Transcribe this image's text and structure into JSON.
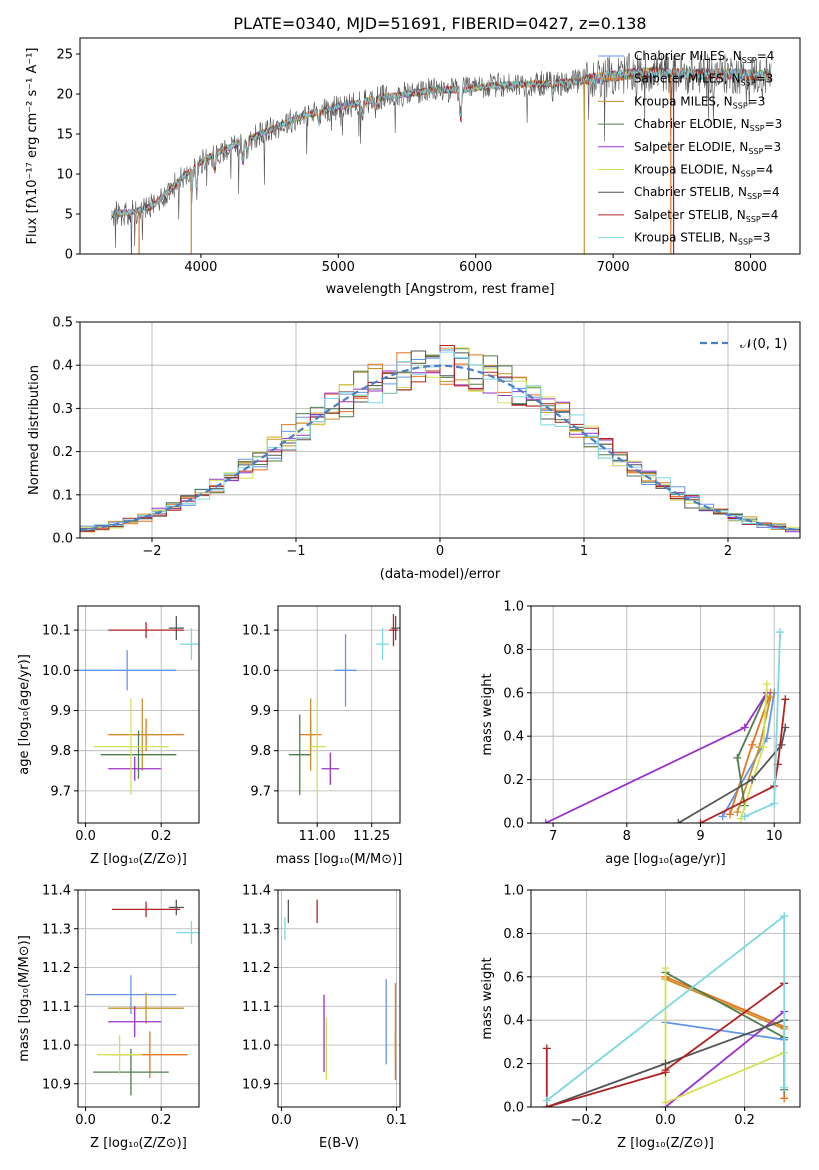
{
  "figure": {
    "title": "PLATE=0340, MJD=51691, FIBERID=0427, z=0.138"
  },
  "colors": [
    "#6495ed",
    "#e8741e",
    "#c8912a",
    "#4f7d4f",
    "#9932cc",
    "#d4e157",
    "#555555",
    "#b22222",
    "#7dd8e0"
  ],
  "chart_data": [
    {
      "id": "spectrum",
      "type": "line",
      "xlabel": "wavelength [Angstrom, rest frame]",
      "ylabel": "Flux [fλ10⁻¹⁷ erg cm⁻² s⁻¹ A⁻¹]",
      "xlim": [
        3120,
        8360
      ],
      "ylim": [
        0,
        27
      ],
      "xticks": [
        4000,
        5000,
        6000,
        7000,
        8000
      ],
      "yticks": [
        0,
        5,
        10,
        15,
        20,
        25
      ],
      "legend": "upper right",
      "series": [
        {
          "name": "Chabrier MILES, N",
          "sub": "SSP",
          "suffix": "=4",
          "color": "#6495ed"
        },
        {
          "name": "Salpeter MILES, N",
          "sub": "SSP",
          "suffix": "=3",
          "color": "#e8741e"
        },
        {
          "name": "Kroupa MILES, N",
          "sub": "SSP",
          "suffix": "=3",
          "color": "#c8912a"
        },
        {
          "name": "Chabrier ELODIE, N",
          "sub": "SSP",
          "suffix": "=3",
          "color": "#4f7d4f"
        },
        {
          "name": "Salpeter ELODIE, N",
          "sub": "SSP",
          "suffix": "=3",
          "color": "#9932cc"
        },
        {
          "name": "Kroupa ELODIE, N",
          "sub": "SSP",
          "suffix": "=4",
          "color": "#d4e157"
        },
        {
          "name": "Chabrier STELIB, N",
          "sub": "SSP",
          "suffix": "=4",
          "color": "#555555"
        },
        {
          "name": "Salpeter STELIB, N",
          "sub": "SSP",
          "suffix": "=4",
          "color": "#b22222"
        },
        {
          "name": "Kroupa STELIB, N",
          "sub": "SSP",
          "suffix": "=3",
          "color": "#7dd8e0"
        }
      ],
      "continuum": {
        "x": [
          3350,
          3500,
          3650,
          3800,
          3950,
          4100,
          4300,
          4500,
          4700,
          4900,
          5100,
          5300,
          5500,
          5700,
          5900,
          6100,
          6300,
          6500,
          6700,
          6900,
          7100,
          7300,
          7500,
          7700,
          7900,
          8100
        ],
        "y": [
          5,
          5.2,
          6,
          8.5,
          11,
          12.5,
          14,
          15.5,
          17,
          18,
          18.7,
          19.5,
          20,
          20.5,
          20.5,
          21,
          21.2,
          21.3,
          21.5,
          22,
          22.5,
          22.7,
          22.5,
          22.5,
          22.5,
          22.3
        ]
      }
    },
    {
      "id": "residuals",
      "type": "line",
      "xlabel": "(data-model)/error",
      "ylabel": "Normed distribution",
      "xlim": [
        -2.5,
        2.5
      ],
      "ylim": [
        0,
        0.5
      ],
      "xticks": [
        -2,
        -1,
        0,
        1,
        2
      ],
      "xticklabels": [
        "−2",
        "−1",
        "0",
        "1",
        "2"
      ],
      "yticks": [
        0,
        0.1,
        0.2,
        0.3,
        0.4,
        0.5
      ],
      "yticklabels": [
        "0.0",
        "0.1",
        "0.2",
        "0.3",
        "0.4",
        "0.5"
      ],
      "reference": {
        "name": "𝒩(0, 1)",
        "mu": 0,
        "sigma": 1,
        "color": "#4a7fc8"
      },
      "legend": "upper right"
    },
    {
      "id": "age-z",
      "type": "scatter",
      "xlabel": "Z [log₁₀(Z/Z⊙)]",
      "ylabel": "age  [log₁₀(age/yr)]",
      "xlim": [
        -0.02,
        0.3
      ],
      "ylim": [
        9.62,
        10.16
      ],
      "xticks": [
        0.0,
        0.2
      ],
      "xticklabels": [
        "0.0",
        "0.2"
      ],
      "yticks": [
        9.7,
        9.8,
        9.9,
        10.0,
        10.1
      ],
      "yticklabels": [
        "9.7",
        "9.8",
        "9.9",
        "10.0",
        "10.1"
      ],
      "points": [
        {
          "x": 0.11,
          "y": 10.0,
          "xe": 0.13,
          "ye": 0.05,
          "c": 0
        },
        {
          "x": 0.16,
          "y": 9.84,
          "xe": 0.1,
          "ye": 0.04,
          "c": 1
        },
        {
          "x": 0.15,
          "y": 9.84,
          "xe": 0.08,
          "ye": 0.09,
          "c": 2
        },
        {
          "x": 0.14,
          "y": 9.79,
          "xe": 0.1,
          "ye": 0.06,
          "c": 3
        },
        {
          "x": 0.13,
          "y": 9.755,
          "xe": 0.07,
          "ye": 0.03,
          "c": 4
        },
        {
          "x": 0.12,
          "y": 9.81,
          "xe": 0.1,
          "ye": 0.12,
          "c": 5
        },
        {
          "x": 0.24,
          "y": 10.105,
          "xe": 0.02,
          "ye": 0.03,
          "c": 6
        },
        {
          "x": 0.16,
          "y": 10.1,
          "xe": 0.1,
          "ye": 0.02,
          "c": 7
        },
        {
          "x": 0.28,
          "y": 10.065,
          "xe": 0.03,
          "ye": 0.04,
          "c": 8
        }
      ]
    },
    {
      "id": "age-mass",
      "type": "scatter",
      "xlabel": "mass [log₁₀(M/M⊙)]",
      "ylabel": "",
      "xlim": [
        10.82,
        11.38
      ],
      "ylim": [
        9.62,
        10.16
      ],
      "xticks": [
        11.0,
        11.25
      ],
      "xticklabels": [
        "11.00",
        "11.25"
      ],
      "yticks": [
        9.7,
        9.8,
        9.9,
        10.0,
        10.1
      ],
      "yticklabels": [
        "9.7",
        "9.8",
        "9.9",
        "10.0",
        "10.1"
      ],
      "points": [
        {
          "x": 11.13,
          "y": 10.0,
          "xe": 0.05,
          "ye": 0.09,
          "c": 0
        },
        {
          "x": 10.97,
          "y": 9.84,
          "xe": 0.05,
          "ye": 0.04,
          "c": 1
        },
        {
          "x": 10.97,
          "y": 9.84,
          "xe": 0.02,
          "ye": 0.09,
          "c": 2
        },
        {
          "x": 10.92,
          "y": 9.79,
          "xe": 0.05,
          "ye": 0.1,
          "c": 3
        },
        {
          "x": 11.06,
          "y": 9.755,
          "xe": 0.04,
          "ye": 0.04,
          "c": 4
        },
        {
          "x": 11.0,
          "y": 9.81,
          "xe": 0.04,
          "ye": 0.12,
          "c": 5
        },
        {
          "x": 11.36,
          "y": 10.105,
          "xe": 0.02,
          "ye": 0.03,
          "c": 6
        },
        {
          "x": 11.35,
          "y": 10.1,
          "xe": 0.02,
          "ye": 0.04,
          "c": 7
        },
        {
          "x": 11.3,
          "y": 10.065,
          "xe": 0.03,
          "ye": 0.04,
          "c": 8
        }
      ]
    },
    {
      "id": "weight-age",
      "type": "line",
      "xlabel": "age  [log₁₀(age/yr)]",
      "ylabel": "mass weight",
      "xlim": [
        6.7,
        10.35
      ],
      "ylim": [
        0,
        1
      ],
      "xticks": [
        7,
        8,
        9,
        10
      ],
      "xticklabels": [
        "7",
        "8",
        "9",
        "10"
      ],
      "yticks": [
        0,
        0.2,
        0.4,
        0.6,
        0.8,
        1.0
      ],
      "yticklabels": [
        "0.0",
        "0.2",
        "0.4",
        "0.6",
        "0.8",
        "1.0"
      ],
      "series": [
        {
          "c": 0,
          "x": [
            9.3,
            9.9,
            10.0
          ],
          "y": [
            0.03,
            0.39,
            0.6
          ]
        },
        {
          "c": 1,
          "x": [
            9.4,
            9.7,
            9.95
          ],
          "y": [
            0.04,
            0.36,
            0.6
          ]
        },
        {
          "c": 2,
          "x": [
            9.5,
            9.8,
            9.95
          ],
          "y": [
            0.05,
            0.35,
            0.58
          ]
        },
        {
          "c": 3,
          "x": [
            9.6,
            9.5,
            9.9
          ],
          "y": [
            0.08,
            0.3,
            0.6
          ]
        },
        {
          "c": 4,
          "x": [
            6.9,
            9.6,
            9.9
          ],
          "y": [
            0.0,
            0.44,
            0.6
          ]
        },
        {
          "c": 5,
          "x": [
            9.55,
            9.85,
            9.9
          ],
          "y": [
            0.02,
            0.35,
            0.64
          ]
        },
        {
          "c": 6,
          "x": [
            8.7,
            9.7,
            10.1,
            10.15
          ],
          "y": [
            0.0,
            0.2,
            0.36,
            0.44
          ]
        },
        {
          "c": 7,
          "x": [
            9.0,
            10.0,
            10.05,
            10.15
          ],
          "y": [
            0.0,
            0.17,
            0.27,
            0.57
          ]
        },
        {
          "c": 8,
          "x": [
            9.6,
            10.0,
            10.08
          ],
          "y": [
            0.03,
            0.09,
            0.88
          ]
        }
      ]
    },
    {
      "id": "mass-z",
      "type": "scatter",
      "xlabel": "Z [log₁₀(Z/Z⊙)]",
      "ylabel": "mass [log₁₀(M/M⊙)]",
      "xlim": [
        -0.02,
        0.3
      ],
      "ylim": [
        10.84,
        11.4
      ],
      "xticks": [
        0.0,
        0.2
      ],
      "xticklabels": [
        "0.0",
        "0.2"
      ],
      "yticks": [
        10.9,
        11.0,
        11.1,
        11.2,
        11.3,
        11.4
      ],
      "yticklabels": [
        "10.9",
        "11.0",
        "11.1",
        "11.2",
        "11.3",
        "11.4"
      ],
      "points": [
        {
          "x": 0.12,
          "y": 11.13,
          "xe": 0.12,
          "ye": 0.05,
          "c": 0
        },
        {
          "x": 0.17,
          "y": 10.975,
          "xe": 0.1,
          "ye": 0.06,
          "c": 1
        },
        {
          "x": 0.16,
          "y": 11.095,
          "xe": 0.1,
          "ye": 0.04,
          "c": 2
        },
        {
          "x": 0.12,
          "y": 10.93,
          "xe": 0.1,
          "ye": 0.06,
          "c": 3
        },
        {
          "x": 0.13,
          "y": 11.06,
          "xe": 0.07,
          "ye": 0.04,
          "c": 4
        },
        {
          "x": 0.09,
          "y": 10.975,
          "xe": 0.06,
          "ye": 0.05,
          "c": 5
        },
        {
          "x": 0.24,
          "y": 11.355,
          "xe": 0.02,
          "ye": 0.02,
          "c": 6
        },
        {
          "x": 0.16,
          "y": 11.35,
          "xe": 0.09,
          "ye": 0.02,
          "c": 7
        },
        {
          "x": 0.28,
          "y": 11.29,
          "xe": 0.04,
          "ye": 0.03,
          "c": 8
        }
      ]
    },
    {
      "id": "mass-ebv",
      "type": "scatter",
      "xlabel": "E(B-V)",
      "ylabel": "",
      "xlim": [
        -0.003,
        0.103
      ],
      "ylim": [
        10.84,
        11.4
      ],
      "xticks": [
        0.0,
        0.1
      ],
      "xticklabels": [
        "0.0",
        "0.1"
      ],
      "yticks": [
        10.9,
        11.0,
        11.1,
        11.2,
        11.3,
        11.4
      ],
      "yticklabels": [
        "10.9",
        "11.0",
        "11.1",
        "11.2",
        "11.3",
        "11.4"
      ],
      "points": [
        {
          "x": 0.091,
          "y": 11.06,
          "xe": 0,
          "ye": 0.11,
          "c": 0
        },
        {
          "x": 0.099,
          "y": 10.97,
          "xe": 0,
          "ye": 0.06,
          "c": 1
        },
        {
          "x": 0.099,
          "y": 11.06,
          "xe": 0,
          "ye": 0.1,
          "c": 2
        },
        {
          "x": 0.037,
          "y": 11.03,
          "xe": 0,
          "ye": 0.1,
          "c": 4
        },
        {
          "x": 0.039,
          "y": 10.99,
          "xe": 0,
          "ye": 0.08,
          "c": 5
        },
        {
          "x": 0.006,
          "y": 11.345,
          "xe": 0,
          "ye": 0.03,
          "c": 6
        },
        {
          "x": 0.031,
          "y": 11.345,
          "xe": 0,
          "ye": 0.03,
          "c": 7
        },
        {
          "x": 0.003,
          "y": 11.3,
          "xe": 0,
          "ye": 0.03,
          "c": 8
        }
      ]
    },
    {
      "id": "weight-z",
      "type": "line",
      "xlabel": "Z [log₁₀(Z/Z⊙)]",
      "ylabel": "mass weight",
      "xlim": [
        -0.34,
        0.34
      ],
      "ylim": [
        0,
        1
      ],
      "xticks": [
        -0.2,
        0.0,
        0.2
      ],
      "xticklabels": [
        "−0.2",
        "0.0",
        "0.2"
      ],
      "yticks": [
        0,
        0.2,
        0.4,
        0.6,
        0.8,
        1.0
      ],
      "yticklabels": [
        "0.0",
        "0.2",
        "0.4",
        "0.6",
        "0.8",
        "1.0"
      ],
      "series": [
        {
          "c": 0,
          "x": [
            0.0,
            0.3
          ],
          "y": [
            0.39,
            0.31
          ]
        },
        {
          "c": 1,
          "x": [
            0.0,
            0.3,
            0.3
          ],
          "y": [
            0.6,
            0.37,
            0.04
          ]
        },
        {
          "c": 2,
          "x": [
            0.0,
            0.3
          ],
          "y": [
            0.59,
            0.36
          ]
        },
        {
          "c": 3,
          "x": [
            0.0,
            0.3,
            0.3
          ],
          "y": [
            0.62,
            0.32,
            0.08
          ]
        },
        {
          "c": 4,
          "x": [
            0.0,
            0.3
          ],
          "y": [
            0.0,
            0.44
          ]
        },
        {
          "c": 5,
          "x": [
            0.0,
            0.0,
            0.3
          ],
          "y": [
            0.64,
            0.02,
            0.25
          ]
        },
        {
          "c": 6,
          "x": [
            -0.3,
            0.0,
            0.3
          ],
          "y": [
            0.0,
            0.2,
            0.4
          ]
        },
        {
          "c": 7,
          "x": [
            -0.3,
            -0.3,
            0.0,
            0.0,
            0.3
          ],
          "y": [
            0.27,
            0.0,
            0.16,
            0.17,
            0.57
          ]
        },
        {
          "c": 8,
          "x": [
            -0.3,
            0.3,
            0.3
          ],
          "y": [
            0.03,
            0.88,
            0.09
          ]
        }
      ]
    }
  ]
}
